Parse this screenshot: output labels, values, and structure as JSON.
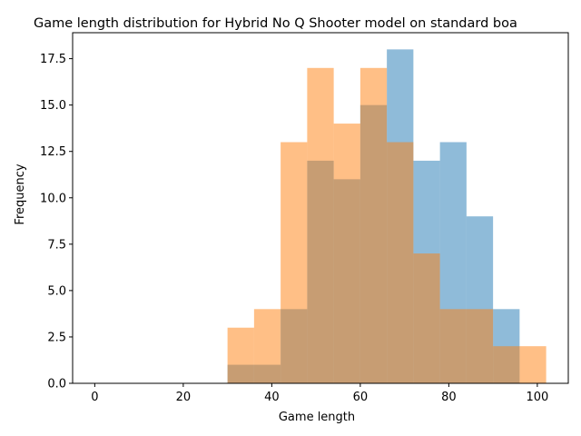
{
  "chart_data": {
    "type": "bar",
    "title": "Game length distribution for Hybrid No Q Shooter model on standard boa",
    "xlabel": "Game length",
    "ylabel": "Frequency",
    "xlim": [
      -5,
      107
    ],
    "ylim": [
      0,
      18.9
    ],
    "xticks": [
      0,
      20,
      40,
      60,
      80,
      100
    ],
    "xtick_labels": [
      "0",
      "20",
      "40",
      "60",
      "80",
      "100"
    ],
    "yticks": [
      0,
      2.5,
      5,
      7.5,
      10,
      12.5,
      15,
      17.5
    ],
    "ytick_labels": [
      "0.0",
      "2.5",
      "5.0",
      "7.5",
      "10.0",
      "12.5",
      "15.0",
      "17.5"
    ],
    "grid": false,
    "bin_width": 6,
    "series": [
      {
        "color": "#1f77b4",
        "opacity": 0.5,
        "bins": [
          {
            "x0": 30,
            "x1": 36,
            "value": 1
          },
          {
            "x0": 36,
            "x1": 42,
            "value": 1
          },
          {
            "x0": 42,
            "x1": 48,
            "value": 4
          },
          {
            "x0": 48,
            "x1": 54,
            "value": 12
          },
          {
            "x0": 54,
            "x1": 60,
            "value": 11
          },
          {
            "x0": 60,
            "x1": 66,
            "value": 15
          },
          {
            "x0": 66,
            "x1": 72,
            "value": 18
          },
          {
            "x0": 72,
            "x1": 78,
            "value": 12
          },
          {
            "x0": 78,
            "x1": 84,
            "value": 13
          },
          {
            "x0": 84,
            "x1": 90,
            "value": 9
          },
          {
            "x0": 90,
            "x1": 96,
            "value": 4
          }
        ]
      },
      {
        "color": "#ff7f0e",
        "opacity": 0.5,
        "bins": [
          {
            "x0": 30,
            "x1": 36,
            "value": 3
          },
          {
            "x0": 36,
            "x1": 42,
            "value": 4
          },
          {
            "x0": 42,
            "x1": 48,
            "value": 13
          },
          {
            "x0": 48,
            "x1": 54,
            "value": 17
          },
          {
            "x0": 54,
            "x1": 60,
            "value": 14
          },
          {
            "x0": 60,
            "x1": 66,
            "value": 17
          },
          {
            "x0": 66,
            "x1": 72,
            "value": 13
          },
          {
            "x0": 72,
            "x1": 78,
            "value": 7
          },
          {
            "x0": 78,
            "x1": 84,
            "value": 4
          },
          {
            "x0": 84,
            "x1": 90,
            "value": 4
          },
          {
            "x0": 90,
            "x1": 96,
            "value": 2
          },
          {
            "x0": 96,
            "x1": 102,
            "value": 2
          }
        ]
      }
    ]
  }
}
